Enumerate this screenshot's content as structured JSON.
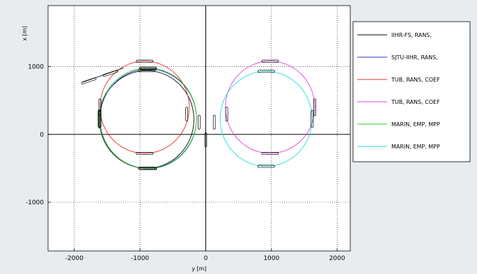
{
  "chart_data": {
    "type": "line",
    "title": "",
    "xlabel": "y [m]",
    "ylabel": "x [m]",
    "xlim": [
      -2400,
      2200
    ],
    "ylim": [
      -1720,
      1900
    ],
    "x_ticks": [
      -2000,
      -1000,
      0,
      1000,
      2000
    ],
    "y_ticks": [
      -1000,
      0,
      1000
    ],
    "x_tick_labels": [
      "-2000",
      "-1000",
      "0",
      "1000",
      "2000"
    ],
    "y_tick_labels": [
      "-1000",
      "0",
      "1000"
    ],
    "grid": true,
    "legend_position": "top-right",
    "series": [
      {
        "name": "IIHR-FS, RANS,",
        "color": "#000000",
        "center": [
          -900,
          220
        ],
        "radius": 720
      },
      {
        "name": "SJTU-IIHR, RANS,",
        "color": "#3333cc",
        "center": [
          -875,
          230
        ],
        "radius": 735
      },
      {
        "name": "TUB, RANS, COEF",
        "color": "#e03030",
        "center": [
          -930,
          400
        ],
        "radius": 680
      },
      {
        "name": "TUB, RANS, COEF",
        "color": "#e040e0",
        "center": [
          980,
          400
        ],
        "radius": 680
      },
      {
        "name": "MARIN, EMP, MPP",
        "color": "#22cc22",
        "center": [
          -880,
          240
        ],
        "radius": 740
      },
      {
        "name": "MARIN, EMP, MPP",
        "color": "#22dddd",
        "center": [
          920,
          230
        ],
        "radius": 700
      }
    ]
  }
}
